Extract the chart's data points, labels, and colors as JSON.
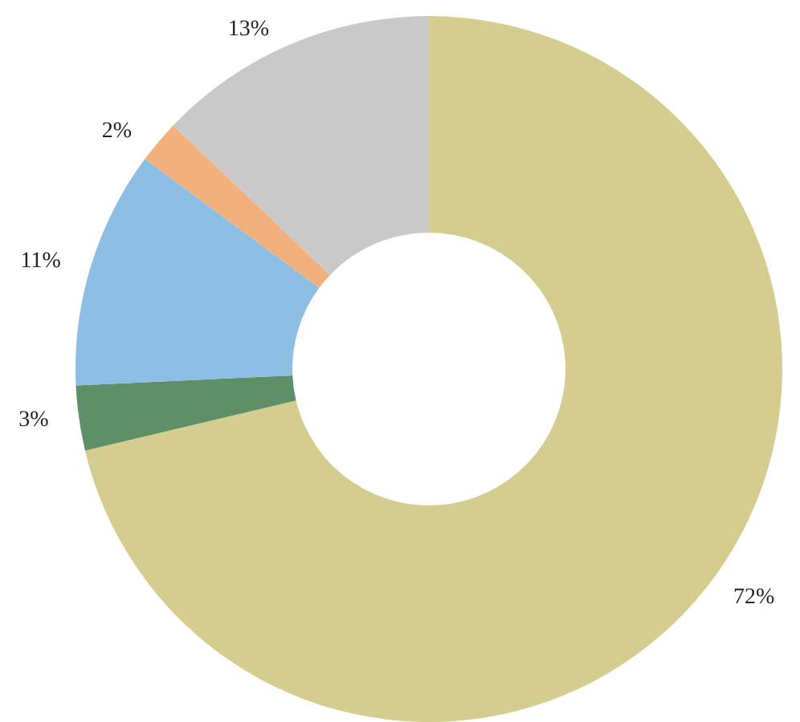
{
  "chart_data": {
    "type": "donut",
    "categories": [
      null,
      null,
      null,
      null,
      null
    ],
    "values": [
      72,
      3,
      11,
      2,
      13
    ],
    "value_labels": [
      "72%",
      "3%",
      "11%",
      "2%",
      "13%"
    ],
    "colors": [
      "#d4cd8f",
      "#5e8f66",
      "#8dbee3",
      "#f2b07c",
      "#c9c9c9"
    ]
  }
}
